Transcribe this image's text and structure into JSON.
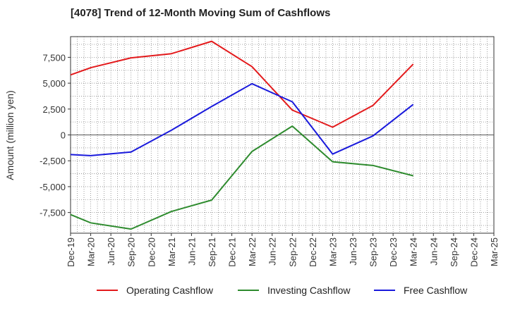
{
  "chart_data": {
    "type": "line",
    "title": "[4078]  Trend of 12-Month Moving Sum of Cashflows",
    "xlabel": "",
    "ylabel": "Amount (million yen)",
    "x": [
      "Dec-19",
      "Mar-20",
      "Jun-20",
      "Sep-20",
      "Dec-20",
      "Mar-21",
      "Jun-21",
      "Sep-21",
      "Dec-21",
      "Mar-22",
      "Jun-22",
      "Sep-22",
      "Dec-22",
      "Mar-23",
      "Jun-23",
      "Sep-23",
      "Dec-23",
      "Mar-24",
      "Jun-24",
      "Sep-24",
      "Dec-24",
      "Mar-25"
    ],
    "ylim": [
      -9500,
      9500
    ],
    "yticks": [
      -7500,
      -5000,
      -2500,
      0,
      2500,
      5000,
      7500
    ],
    "ytick_labels": [
      "-7,500",
      "-5,000",
      "-2,500",
      "0",
      "2,500",
      "5,000",
      "7,500"
    ],
    "grid": true,
    "legend_position": "bottom",
    "series": [
      {
        "name": "Operating Cashflow",
        "color": "#e31a1c",
        "points": [
          [
            "Dec-19",
            5800
          ],
          [
            "Mar-20",
            6500
          ],
          [
            "Sep-20",
            7450
          ],
          [
            "Mar-21",
            7850
          ],
          [
            "Sep-21",
            9050
          ],
          [
            "Mar-22",
            6600
          ],
          [
            "Sep-22",
            2400
          ],
          [
            "Mar-23",
            750
          ],
          [
            "Sep-23",
            2850
          ],
          [
            "Mar-24",
            6850
          ]
        ]
      },
      {
        "name": "Investing Cashflow",
        "color": "#2e8b2e",
        "points": [
          [
            "Dec-19",
            -7700
          ],
          [
            "Mar-20",
            -8500
          ],
          [
            "Sep-20",
            -9100
          ],
          [
            "Mar-21",
            -7400
          ],
          [
            "Sep-21",
            -6300
          ],
          [
            "Mar-22",
            -1600
          ],
          [
            "Sep-22",
            850
          ],
          [
            "Mar-23",
            -2600
          ],
          [
            "Sep-23",
            -2950
          ],
          [
            "Mar-24",
            -3950
          ]
        ]
      },
      {
        "name": "Free Cashflow",
        "color": "#1a1adc",
        "points": [
          [
            "Dec-19",
            -1900
          ],
          [
            "Mar-20",
            -2000
          ],
          [
            "Sep-20",
            -1650
          ],
          [
            "Mar-21",
            450
          ],
          [
            "Sep-21",
            2750
          ],
          [
            "Mar-22",
            4950
          ],
          [
            "Sep-22",
            3200
          ],
          [
            "Mar-23",
            -1850
          ],
          [
            "Sep-23",
            -100
          ],
          [
            "Mar-24",
            2950
          ]
        ]
      }
    ]
  }
}
